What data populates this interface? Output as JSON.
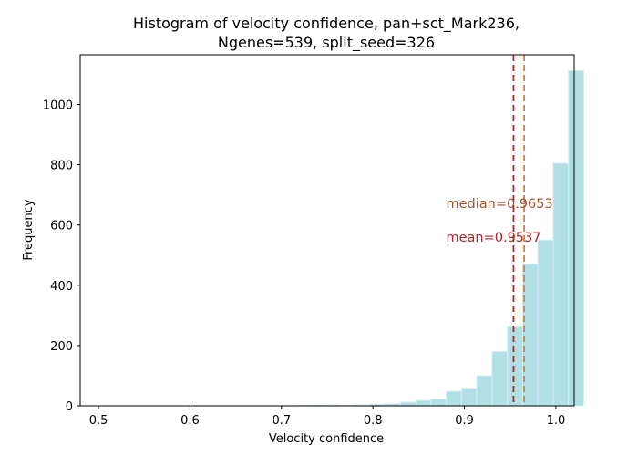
{
  "chart_data": {
    "type": "bar",
    "title_lines": [
      "Histogram of velocity confidence, pan+sct_Mark236,",
      "Ngenes=539, split_seed=326"
    ],
    "xlabel": "Velocity confidence",
    "ylabel": "Frequency",
    "xlim": [
      0.48,
      1.02
    ],
    "ylim": [
      0,
      1165
    ],
    "xticks": [
      0.5,
      0.6,
      0.7,
      0.8,
      0.9,
      1.0
    ],
    "xtick_labels": [
      "0.5",
      "0.6",
      "0.7",
      "0.8",
      "0.9",
      "1.0"
    ],
    "yticks": [
      0,
      200,
      400,
      600,
      800,
      1000
    ],
    "ytick_labels": [
      "0",
      "200",
      "400",
      "600",
      "800",
      "1000"
    ],
    "bin_start": 0.496,
    "bin_width": 0.0167,
    "values": [
      0,
      0,
      0,
      0,
      0,
      0,
      0,
      0,
      0,
      0,
      0,
      0,
      0,
      1,
      2,
      3,
      1,
      3,
      5,
      7,
      12,
      18,
      22,
      48,
      58,
      100,
      180,
      262,
      470,
      550,
      805,
      1112
    ],
    "bar_color": "#b0dfe5",
    "bar_edge_color": "#d6eef1",
    "lines": [
      {
        "name": "mean",
        "x": 0.9537,
        "color": "#b22222"
      },
      {
        "name": "median",
        "x": 0.9653,
        "color": "#cd853f"
      }
    ],
    "annotations": [
      {
        "text": "median=0.9653",
        "x": 0.88,
        "y": 672,
        "color": "#a0522d"
      },
      {
        "text": "mean=0.9537",
        "x": 0.88,
        "y": 560,
        "color": "#b22222"
      }
    ],
    "grid": false,
    "legend": "none"
  }
}
